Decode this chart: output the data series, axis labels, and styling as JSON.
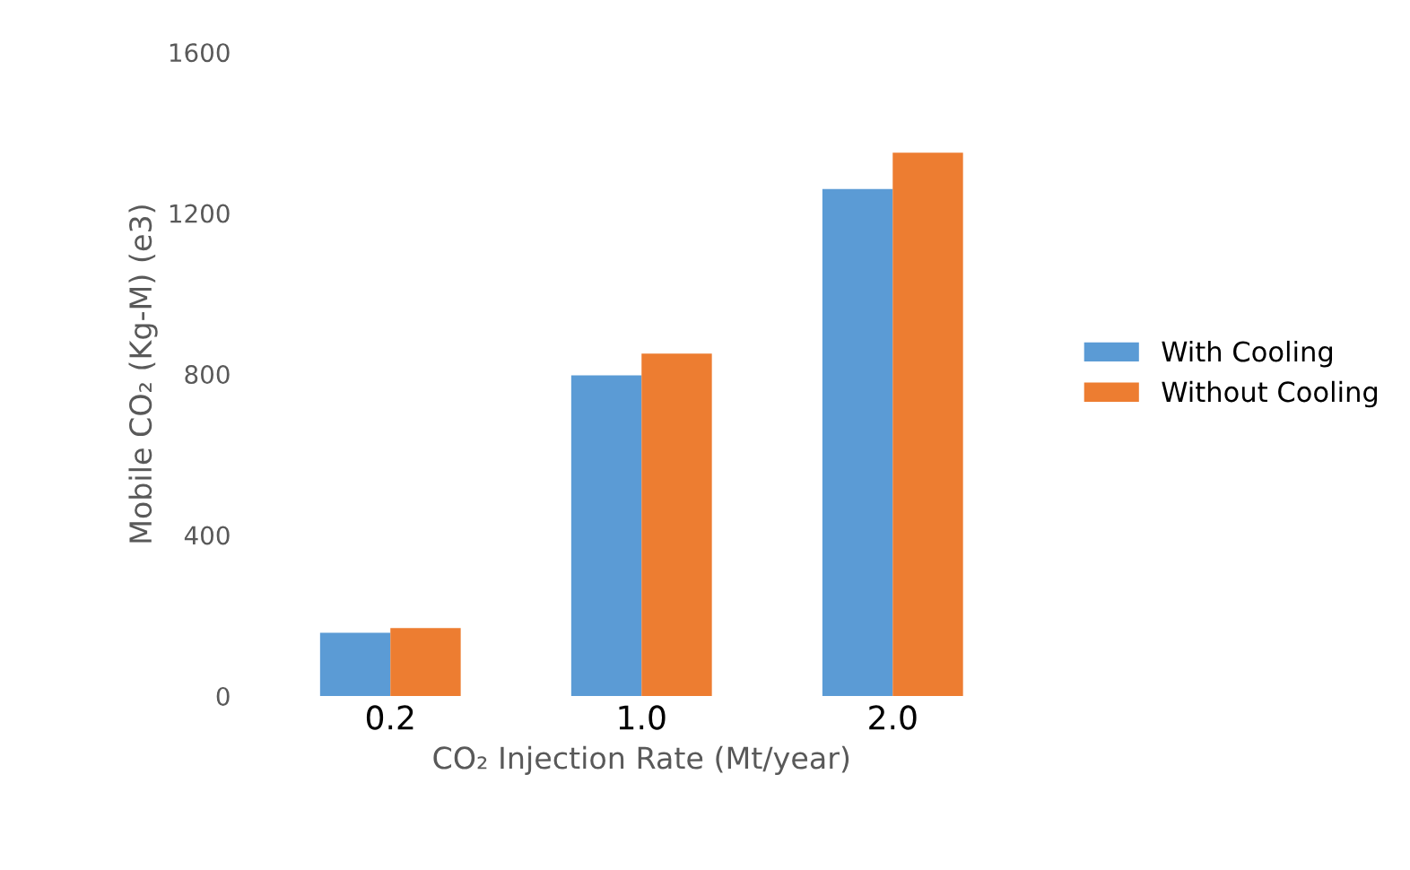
{
  "chart_data": {
    "type": "bar",
    "xlabel": "CO₂ Injection Rate (Mt/year)",
    "ylabel": "Mobile CO₂ (Kg-M) (e3)",
    "categories": [
      "0.2",
      "1.0",
      "2.0"
    ],
    "series": [
      {
        "name": "With Cooling",
        "color": "#5b9bd5",
        "values": [
          157,
          797,
          1260
        ]
      },
      {
        "name": "Without Cooling",
        "color": "#ed7d31",
        "values": [
          169,
          851,
          1350
        ]
      }
    ],
    "ylim": [
      0,
      1600
    ],
    "yticks": [
      0,
      400,
      800,
      1200,
      1600
    ],
    "grid": false,
    "legend": "right"
  }
}
